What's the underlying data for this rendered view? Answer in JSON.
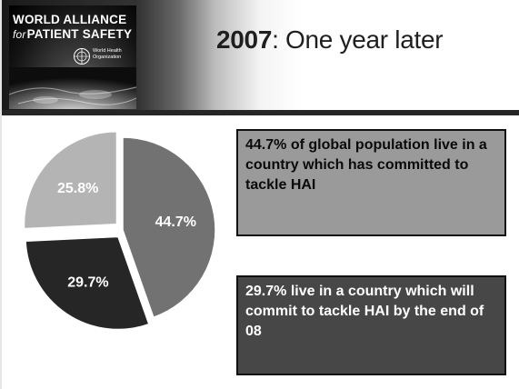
{
  "logo": {
    "line1": "WORLD ALLIANCE",
    "line2_for": "for",
    "line2_main": "PATIENT SAFETY",
    "who_line1": "World Health",
    "who_line2": "Organization",
    "emblem_icon": "who-emblem-icon"
  },
  "header": {
    "title_year": "2007",
    "title_rest": ": One year later"
  },
  "chart_data": {
    "type": "pie",
    "title": "",
    "slices": [
      {
        "label": "44.7%",
        "value": 44.7,
        "color": "#727272",
        "exploded": false
      },
      {
        "label": "29.7%",
        "value": 29.7,
        "color": "#262626",
        "exploded": true
      },
      {
        "label": "25.8%",
        "value": 25.8,
        "color": "#b4b4b4",
        "exploded": true
      }
    ],
    "start_angle_deg": 0,
    "direction": "clockwise",
    "legend": "none"
  },
  "callouts": {
    "top": "44.7% of global population live in a country which has committed to tackle HAI",
    "bottom": "29.7% live in a country which will commit to tackle HAI by the end of 08"
  }
}
